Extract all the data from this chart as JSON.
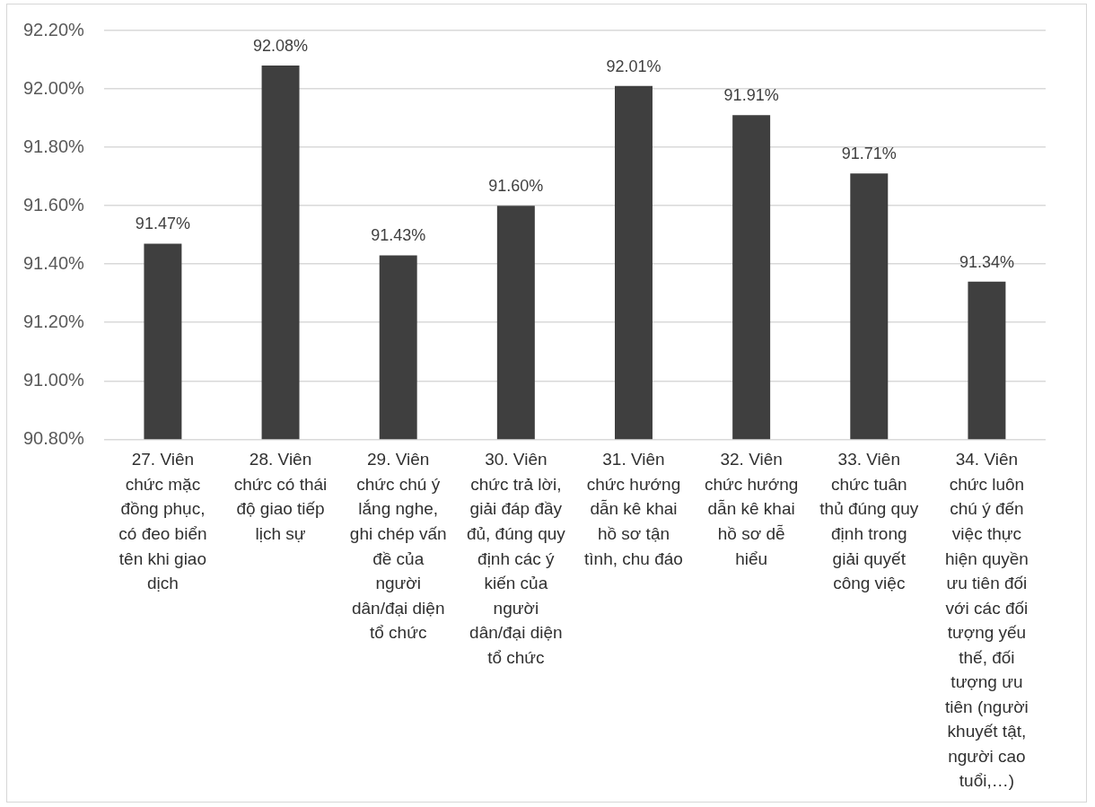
{
  "chart_data": {
    "type": "bar",
    "categories": [
      "27. Viên chức mặc đồng phục, có đeo biển tên khi giao dịch",
      "28. Viên chức có thái độ giao tiếp lịch sự",
      "29. Viên chức chú ý lắng nghe, ghi chép vấn đề của người dân/đại diện tổ chức",
      "30. Viên chức trả lời, giải đáp đầy đủ, đúng quy định các ý kiến của người dân/đại diện tổ chức",
      "31. Viên chức hướng dẫn kê khai hồ sơ tận tình, chu đáo",
      "32. Viên chức hướng dẫn kê khai hồ sơ dễ hiểu",
      "33. Viên chức tuân thủ đúng quy định trong giải quyết công việc",
      "34. Viên chức luôn chú ý đến việc thực hiện quyền ưu tiên đối với các đối tượng yếu thế, đối tượng ưu tiên (người khuyết tật, người cao tuổi,…)"
    ],
    "values": [
      91.47,
      92.08,
      91.43,
      91.6,
      92.01,
      91.91,
      91.71,
      91.34
    ],
    "value_labels": [
      "91.47%",
      "92.08%",
      "91.43%",
      "91.60%",
      "92.01%",
      "91.91%",
      "91.71%",
      "91.34%"
    ],
    "color": "#3f3f3f",
    "ylim": [
      90.8,
      92.2
    ],
    "yticks": [
      {
        "value": 90.8,
        "label": "90.80%"
      },
      {
        "value": 91.0,
        "label": "91.00%"
      },
      {
        "value": 91.2,
        "label": "91.20%"
      },
      {
        "value": 91.4,
        "label": "91.40%"
      },
      {
        "value": 91.6,
        "label": "91.60%"
      },
      {
        "value": 91.8,
        "label": "91.80%"
      },
      {
        "value": 92.0,
        "label": "92.00%"
      },
      {
        "value": 92.2,
        "label": "92.20%"
      }
    ],
    "grid": "y"
  }
}
